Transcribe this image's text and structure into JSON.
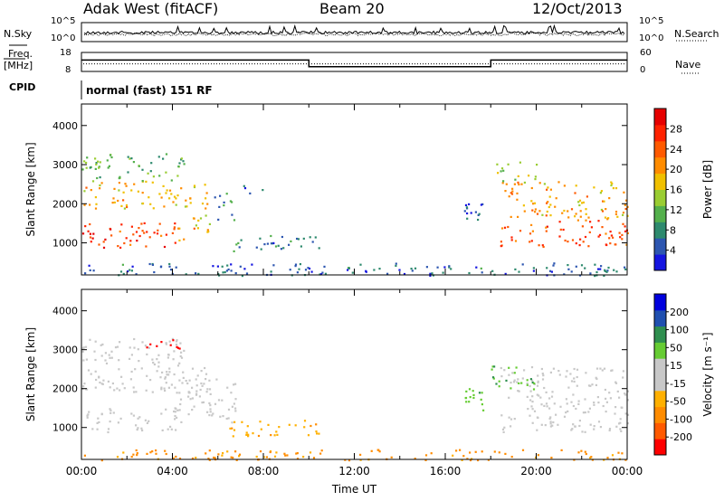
{
  "header": {
    "station": "Adak West (fitACF)",
    "beam": "Beam 20",
    "date": "12/Oct/2013"
  },
  "noise_panel": {
    "left_label": "N.Sky",
    "right_label": "N.Search",
    "left_ticks": [
      "10^5",
      "10^0"
    ],
    "right_ticks": [
      "10^5",
      "10^0"
    ]
  },
  "freq_panel": {
    "left_label_top": "Freq.",
    "left_label_bottom": "[MHz]",
    "right_label": "Nave",
    "left_ticks": [
      "18",
      "8"
    ],
    "right_ticks": [
      "60",
      "0"
    ],
    "freq_steps": [
      {
        "start_h": 0,
        "end_h": 10,
        "value": 14
      },
      {
        "start_h": 10,
        "end_h": 18,
        "value": 10.5
      },
      {
        "start_h": 18,
        "end_h": 24,
        "value": 14
      }
    ],
    "nave_level": 12
  },
  "cpid": {
    "label": "CPID",
    "mode": "normal (fast) 151 RF"
  },
  "colors": {
    "power_scale": [
      "#1515e0",
      "#2d56b0",
      "#2e8a6e",
      "#54b04c",
      "#9acd32",
      "#f0c000",
      "#ff8c00",
      "#ff5a00",
      "#ff2200",
      "#e60000"
    ],
    "velocity_scale": [
      "#ff0000",
      "#ff5a00",
      "#ff8c00",
      "#ffb000",
      "#c8c8c8",
      "#c8c8c8",
      "#66cc33",
      "#2f8f4f",
      "#2050b0",
      "#0000dd"
    ],
    "ground_scatter": "#c8c8c8"
  },
  "chart_data": [
    {
      "type": "heatmap",
      "name": "power",
      "ylabel": "Slant Range [km]",
      "yticks": [
        "1000",
        "2000",
        "3000",
        "4000"
      ],
      "ylim": [
        180,
        4550
      ],
      "xlim": [
        0,
        24
      ],
      "colorbar_label": "Power [dB]",
      "colorbar_ticks": [
        "4",
        "8",
        "12",
        "16",
        "20",
        "24",
        "28"
      ],
      "colorbar_range": [
        0,
        32
      ],
      "scatter_regions": [
        {
          "t0": 0,
          "t1": 4.2,
          "r0": 900,
          "r1": 1550,
          "v": 26
        },
        {
          "t0": 4.2,
          "t1": 5.0,
          "r0": 1050,
          "r1": 1700,
          "v": 22
        },
        {
          "t0": 5.0,
          "t1": 5.8,
          "r0": 1300,
          "r1": 2000,
          "v": 16
        },
        {
          "t0": 5.8,
          "t1": 6.8,
          "r0": 1600,
          "r1": 2350,
          "v": 9
        },
        {
          "t0": 0,
          "t1": 5.5,
          "r0": 1900,
          "r1": 2600,
          "v": 19
        },
        {
          "t0": 0,
          "t1": 4.5,
          "r0": 2600,
          "r1": 3300,
          "v": 12
        },
        {
          "t0": 6.8,
          "t1": 8.0,
          "r0": 2200,
          "r1": 2500,
          "v": 5
        },
        {
          "t0": 6.5,
          "t1": 10.5,
          "r0": 800,
          "r1": 1200,
          "v": 7
        },
        {
          "t0": 16.8,
          "t1": 17.7,
          "r0": 1300,
          "r1": 2100,
          "v": 5
        },
        {
          "t0": 18.4,
          "t1": 24,
          "r0": 900,
          "r1": 1600,
          "v": 25
        },
        {
          "t0": 18.4,
          "t1": 24,
          "r0": 1600,
          "r1": 2600,
          "v": 19
        },
        {
          "t0": 18.0,
          "t1": 20.0,
          "r0": 2600,
          "r1": 3100,
          "v": 13
        },
        {
          "t0": 0,
          "t1": 24,
          "r0": 180,
          "r1": 500,
          "v": 6
        }
      ]
    },
    {
      "type": "heatmap",
      "name": "velocity",
      "ylabel": "Slant Range [km]",
      "xlabel": "Time UT",
      "yticks": [
        "1000",
        "2000",
        "3000",
        "4000"
      ],
      "ylim": [
        180,
        4550
      ],
      "xlim": [
        0,
        24
      ],
      "xticks": [
        "00:00",
        "04:00",
        "08:00",
        "12:00",
        "16:00",
        "20:00",
        "00:00"
      ],
      "colorbar_label": "Velocity [m s⁻¹]",
      "colorbar_ticks": [
        "-200",
        "-100",
        "-50",
        "-15",
        "15",
        "50",
        "100",
        "200"
      ],
      "scatter_regions": [
        {
          "t0": 0,
          "t1": 4.2,
          "r0": 900,
          "r1": 1550,
          "v": 0,
          "gs": true
        },
        {
          "t0": 4.2,
          "t1": 6.8,
          "r0": 1100,
          "r1": 2350,
          "v": 0,
          "gs": true
        },
        {
          "t0": 0,
          "t1": 5.5,
          "r0": 1900,
          "r1": 2600,
          "v": 0,
          "gs": true
        },
        {
          "t0": 0,
          "t1": 4.5,
          "r0": 2600,
          "r1": 3300,
          "v": 0,
          "gs": true
        },
        {
          "t0": 2.5,
          "t1": 4.5,
          "r0": 3050,
          "r1": 3300,
          "v": -220
        },
        {
          "t0": 6.5,
          "t1": 10.5,
          "r0": 800,
          "r1": 1200,
          "v": -40
        },
        {
          "t0": 16.8,
          "t1": 17.7,
          "r0": 1300,
          "r1": 2100,
          "v": 40
        },
        {
          "t0": 18.4,
          "t1": 24,
          "r0": 900,
          "r1": 2600,
          "v": 0,
          "gs": true
        },
        {
          "t0": 18.0,
          "t1": 20.0,
          "r0": 2000,
          "r1": 2600,
          "v": 40
        },
        {
          "t0": 0,
          "t1": 24,
          "r0": 180,
          "r1": 450,
          "v": -60
        }
      ]
    }
  ]
}
